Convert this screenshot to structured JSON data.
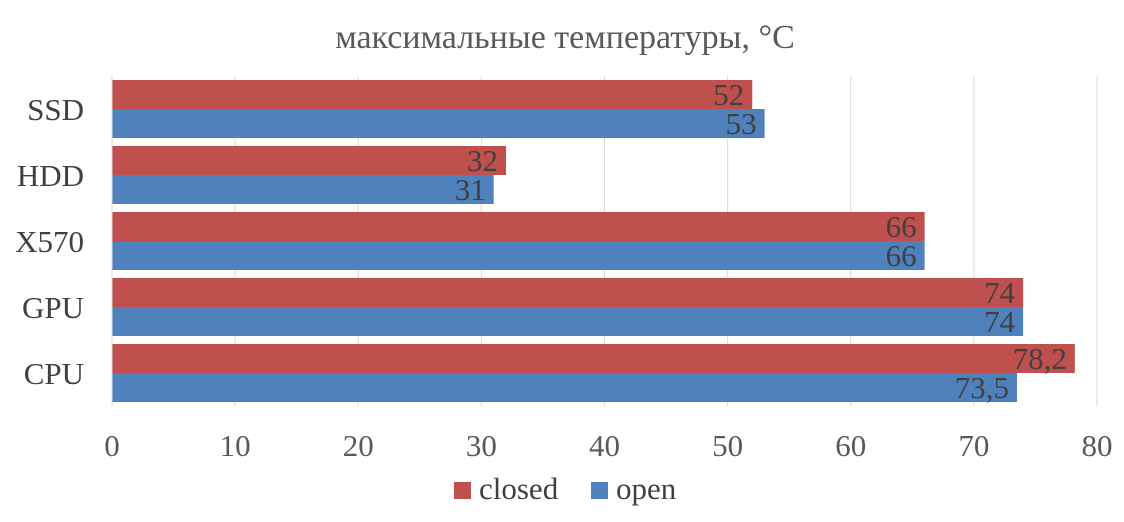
{
  "chart_data": {
    "type": "bar",
    "orientation": "horizontal",
    "title": "максимальные температуры, °С",
    "categories": [
      "SSD",
      "HDD",
      "X570",
      "GPU",
      "CPU"
    ],
    "series": [
      {
        "name": "closed",
        "color": "#c0504d",
        "values": [
          52,
          32,
          66,
          74,
          78.2
        ],
        "labels": [
          "52",
          "32",
          "66",
          "74",
          "78,2"
        ]
      },
      {
        "name": "open",
        "color": "#4f81bd",
        "values": [
          53,
          31,
          66,
          74,
          73.5
        ],
        "labels": [
          "53",
          "31",
          "66",
          "74",
          "73,5"
        ]
      }
    ],
    "xlim": [
      0,
      80
    ],
    "xticks": [
      0,
      10,
      20,
      30,
      40,
      50,
      60,
      70,
      80
    ],
    "grid": true,
    "legend_position": "bottom"
  }
}
